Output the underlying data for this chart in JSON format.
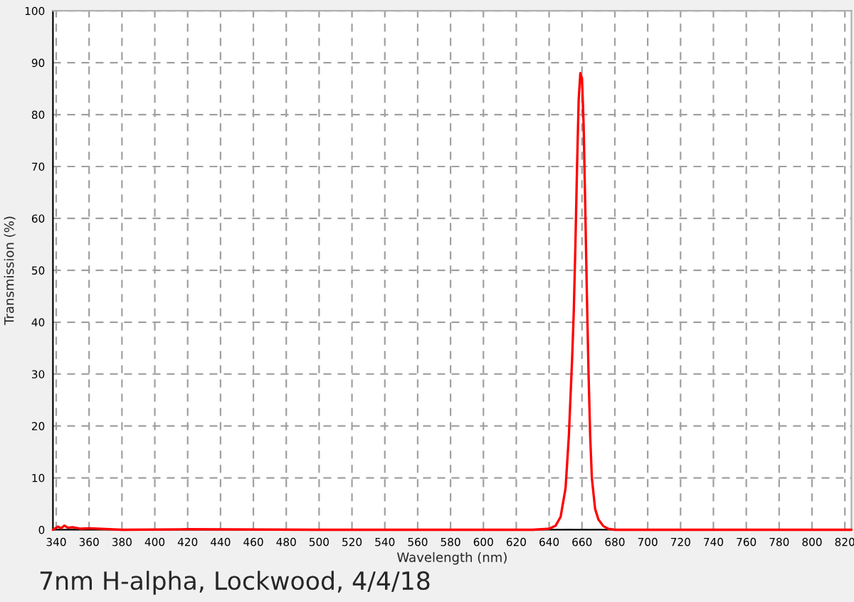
{
  "chart_data": {
    "type": "line",
    "xlabel": "Wavelength (nm)",
    "ylabel": "Transmission (%)",
    "annotations": [
      "7nm H-alpha, Lockwood, 4/4/18"
    ],
    "series": [
      {
        "color": "#ff0000",
        "x": [
          338,
          341,
          343,
          345,
          347,
          350,
          355,
          360,
          380,
          420,
          500,
          600,
          630,
          640,
          644,
          647,
          650,
          652,
          654,
          655,
          656,
          657,
          658,
          659,
          660,
          661,
          662,
          663,
          664,
          665,
          666,
          668,
          670,
          673,
          676,
          680,
          700,
          760,
          824
        ],
        "values": [
          0,
          0.6,
          0.3,
          0.8,
          0.4,
          0.5,
          0.2,
          0.3,
          0,
          0.1,
          0,
          0,
          0,
          0.2,
          0.8,
          2.5,
          8,
          18,
          33,
          42,
          55,
          70,
          83,
          88,
          87,
          78,
          62,
          45,
          30,
          18,
          10,
          4,
          2,
          0.7,
          0.2,
          0,
          0,
          0,
          0
        ]
      }
    ],
    "xlim": [
      338,
      824
    ],
    "ylim": [
      0,
      100
    ],
    "xticks": [
      340,
      360,
      380,
      400,
      420,
      440,
      460,
      480,
      500,
      520,
      540,
      560,
      580,
      600,
      620,
      640,
      660,
      680,
      700,
      720,
      740,
      760,
      780,
      800,
      820
    ],
    "yticks": [
      0,
      10,
      20,
      30,
      40,
      50,
      60,
      70,
      80,
      90,
      100
    ],
    "grid": true,
    "line_style": "solid",
    "marker": "none"
  }
}
